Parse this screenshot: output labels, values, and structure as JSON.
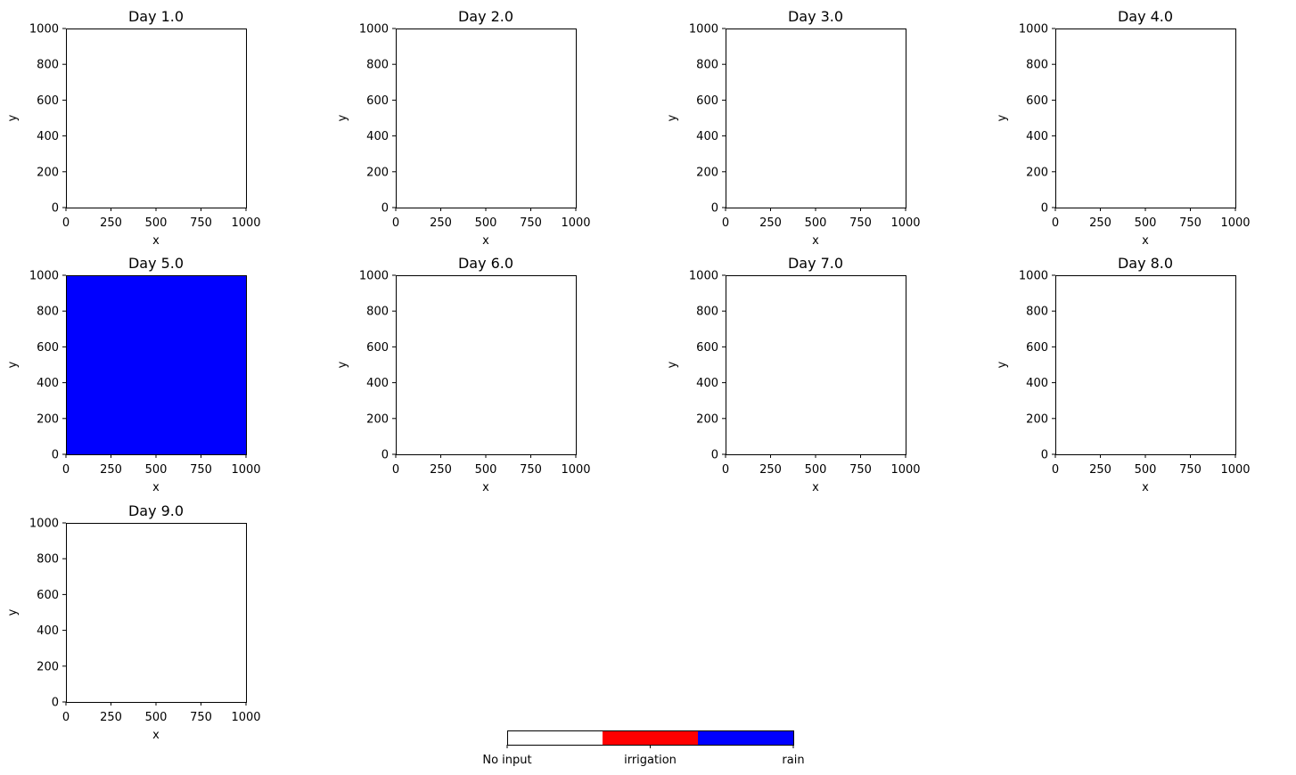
{
  "chart_data": {
    "type": "heatmap",
    "panels": [
      {
        "title": "Day 1.0",
        "category": "No input"
      },
      {
        "title": "Day 2.0",
        "category": "No input"
      },
      {
        "title": "Day 3.0",
        "category": "No input"
      },
      {
        "title": "Day 4.0",
        "category": "No input"
      },
      {
        "title": "Day 5.0",
        "category": "rain"
      },
      {
        "title": "Day 6.0",
        "category": "No input"
      },
      {
        "title": "Day 7.0",
        "category": "No input"
      },
      {
        "title": "Day 8.0",
        "category": "No input"
      },
      {
        "title": "Day 9.0",
        "category": "No input"
      }
    ],
    "xlabel": "x",
    "ylabel": "y",
    "xlim": [
      0,
      1000
    ],
    "ylim": [
      0,
      1000
    ],
    "xticks": [
      0,
      250,
      500,
      750,
      1000
    ],
    "yticks": [
      0,
      200,
      400,
      600,
      800,
      1000
    ],
    "colorbar": {
      "orientation": "horizontal",
      "placement": "bottom-center",
      "categories": [
        {
          "label": "No input",
          "color": "#ffffff"
        },
        {
          "label": "irrigation",
          "color": "#ff0000"
        },
        {
          "label": "rain",
          "color": "#0000ff"
        }
      ]
    }
  }
}
